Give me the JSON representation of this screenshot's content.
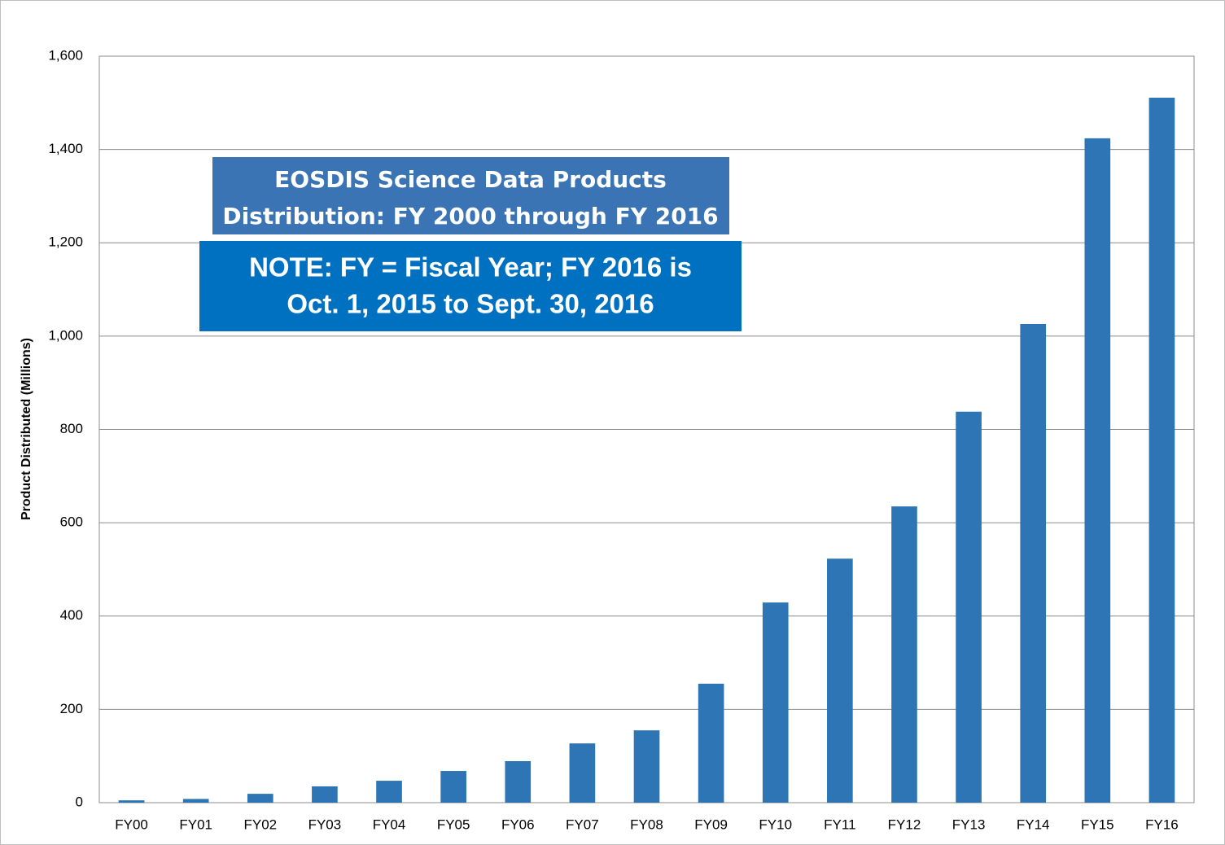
{
  "chart_data": {
    "type": "bar",
    "title": [
      "EOSDIS Science Data Products",
      "Distribution: FY 2000 through FY 2016"
    ],
    "annotation": [
      "NOTE: FY = Fiscal Year; FY 2016 is",
      "Oct. 1, 2015 to Sept. 30, 2016"
    ],
    "y_label": "Product Distributed (Millions)",
    "categories": [
      "FY00",
      "FY01",
      "FY02",
      "FY03",
      "FY04",
      "FY05",
      "FY06",
      "FY07",
      "FY08",
      "FY09",
      "FY10",
      "FY11",
      "FY12",
      "FY13",
      "FY14",
      "FY15",
      "FY16"
    ],
    "values": [
      5,
      8,
      19,
      35,
      47,
      68,
      89,
      127,
      155,
      255,
      429,
      523,
      635,
      838,
      1026,
      1424,
      1511
    ],
    "color": "#2e75b6",
    "ylim": [
      0,
      1600
    ],
    "yticks": [
      0,
      200,
      400,
      600,
      800,
      {
        "value": 1000,
        "label": "1,000"
      },
      {
        "value": 1200,
        "label": "1,200"
      },
      {
        "value": 1400,
        "label": "1,400"
      },
      {
        "value": 1600,
        "label": "1,600"
      }
    ],
    "grid": true
  }
}
